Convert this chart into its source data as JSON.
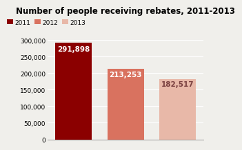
{
  "title": "Number of people receiving rebates, 2011-2013",
  "categories": [
    "2011",
    "2012",
    "2013"
  ],
  "values": [
    291898,
    213253,
    182517
  ],
  "bar_colors": [
    "#8B0000",
    "#D9725F",
    "#E8B8A8"
  ],
  "bar_labels": [
    "291,898",
    "213,253",
    "182,517"
  ],
  "bar_label_colors": [
    "#FFFFFF",
    "#FFFFFF",
    "#7A4040"
  ],
  "ylim": [
    0,
    330000
  ],
  "yticks": [
    0,
    50000,
    100000,
    150000,
    200000,
    250000,
    300000
  ],
  "ytick_labels": [
    "0",
    "50,000",
    "100,000",
    "150,000",
    "200,000",
    "250,000",
    "300,000"
  ],
  "legend_labels": [
    "2011",
    "2012",
    "2013"
  ],
  "background_color": "#F0EFEB",
  "title_fontsize": 8.5,
  "tick_fontsize": 6.5,
  "label_fontsize": 7.5
}
